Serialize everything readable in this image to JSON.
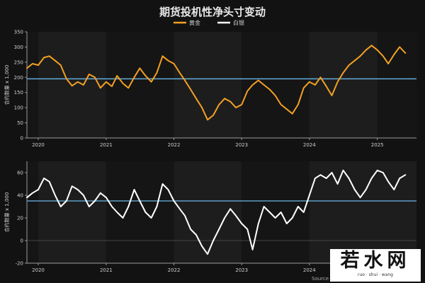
{
  "chart_data": [
    {
      "type": "line",
      "panel": "top",
      "title": "期货投机性净头寸变动",
      "ylabel": "合约数量 x 1,000",
      "ylim": [
        0,
        350
      ],
      "yticks": [
        0,
        50,
        100,
        150,
        200,
        250,
        300,
        350
      ],
      "xlim": [
        "2019-11-01",
        "2025-07-31"
      ],
      "xticks": [
        {
          "date": "2020-01-01",
          "label": "2020"
        },
        {
          "date": "2021-01-01",
          "label": "2021"
        },
        {
          "date": "2022-01-01",
          "label": "2022"
        },
        {
          "date": "2023-01-01",
          "label": "2023"
        },
        {
          "date": "2024-01-01",
          "label": "2024"
        },
        {
          "date": "2025-01-01",
          "label": "2025"
        }
      ],
      "reference_line": 195,
      "grid": false,
      "legend_position": "top-center",
      "series": [
        {
          "name": "黄金",
          "color": "#f2a023",
          "points": [
            [
              "2019-11-01",
              230
            ],
            [
              "2019-12-01",
              245
            ],
            [
              "2020-01-01",
              240
            ],
            [
              "2020-02-01",
              265
            ],
            [
              "2020-03-01",
              270
            ],
            [
              "2020-04-01",
              255
            ],
            [
              "2020-05-01",
              240
            ],
            [
              "2020-06-01",
              195
            ],
            [
              "2020-07-01",
              172
            ],
            [
              "2020-08-01",
              185
            ],
            [
              "2020-09-01",
              175
            ],
            [
              "2020-10-01",
              210
            ],
            [
              "2020-11-01",
              200
            ],
            [
              "2020-12-01",
              165
            ],
            [
              "2021-01-01",
              185
            ],
            [
              "2021-02-01",
              170
            ],
            [
              "2021-03-01",
              205
            ],
            [
              "2021-04-01",
              180
            ],
            [
              "2021-05-01",
              165
            ],
            [
              "2021-06-01",
              200
            ],
            [
              "2021-07-01",
              230
            ],
            [
              "2021-08-01",
              205
            ],
            [
              "2021-09-01",
              185
            ],
            [
              "2021-10-01",
              215
            ],
            [
              "2021-11-01",
              270
            ],
            [
              "2021-12-01",
              255
            ],
            [
              "2022-01-01",
              245
            ],
            [
              "2022-02-01",
              215
            ],
            [
              "2022-03-01",
              190
            ],
            [
              "2022-04-01",
              160
            ],
            [
              "2022-05-01",
              130
            ],
            [
              "2022-06-01",
              100
            ],
            [
              "2022-07-01",
              60
            ],
            [
              "2022-08-01",
              75
            ],
            [
              "2022-09-01",
              110
            ],
            [
              "2022-10-01",
              130
            ],
            [
              "2022-11-01",
              120
            ],
            [
              "2022-12-01",
              100
            ],
            [
              "2023-01-01",
              110
            ],
            [
              "2023-02-01",
              155
            ],
            [
              "2023-03-01",
              175
            ],
            [
              "2023-04-01",
              190
            ],
            [
              "2023-05-01",
              175
            ],
            [
              "2023-06-01",
              160
            ],
            [
              "2023-07-01",
              140
            ],
            [
              "2023-08-01",
              110
            ],
            [
              "2023-09-01",
              95
            ],
            [
              "2023-10-01",
              80
            ],
            [
              "2023-11-01",
              110
            ],
            [
              "2023-12-01",
              165
            ],
            [
              "2024-01-01",
              185
            ],
            [
              "2024-02-01",
              175
            ],
            [
              "2024-03-01",
              200
            ],
            [
              "2024-04-01",
              170
            ],
            [
              "2024-05-01",
              140
            ],
            [
              "2024-06-01",
              185
            ],
            [
              "2024-07-01",
              215
            ],
            [
              "2024-08-01",
              240
            ],
            [
              "2024-09-01",
              255
            ],
            [
              "2024-10-01",
              270
            ],
            [
              "2024-11-01",
              290
            ],
            [
              "2024-12-01",
              305
            ],
            [
              "2025-01-01",
              290
            ],
            [
              "2025-02-01",
              270
            ],
            [
              "2025-03-01",
              245
            ],
            [
              "2025-04-01",
              275
            ],
            [
              "2025-05-01",
              300
            ],
            [
              "2025-06-01",
              280
            ]
          ]
        }
      ]
    },
    {
      "type": "line",
      "panel": "bottom",
      "ylabel": "合约数量 x 1,000",
      "ylim": [
        -20,
        70
      ],
      "yticks": [
        -20,
        0,
        20,
        40,
        60
      ],
      "xlim": [
        "2019-11-01",
        "2025-07-31"
      ],
      "xticks": [
        {
          "date": "2020-01-01",
          "label": "2020"
        },
        {
          "date": "2021-01-01",
          "label": "2021"
        },
        {
          "date": "2022-01-01",
          "label": "2022"
        },
        {
          "date": "2023-01-01",
          "label": "2023"
        },
        {
          "date": "2024-01-01",
          "label": "2024"
        }
      ],
      "reference_line": 35,
      "grid": false,
      "source_label": "Source",
      "series": [
        {
          "name": "白银",
          "color": "#ffffff",
          "points": [
            [
              "2019-11-01",
              38
            ],
            [
              "2019-12-01",
              42
            ],
            [
              "2020-01-01",
              45
            ],
            [
              "2020-02-01",
              55
            ],
            [
              "2020-03-01",
              52
            ],
            [
              "2020-04-01",
              40
            ],
            [
              "2020-05-01",
              30
            ],
            [
              "2020-06-01",
              35
            ],
            [
              "2020-07-01",
              48
            ],
            [
              "2020-08-01",
              45
            ],
            [
              "2020-09-01",
              40
            ],
            [
              "2020-10-01",
              30
            ],
            [
              "2020-11-01",
              35
            ],
            [
              "2020-12-01",
              42
            ],
            [
              "2021-01-01",
              38
            ],
            [
              "2021-02-01",
              30
            ],
            [
              "2021-03-01",
              25
            ],
            [
              "2021-04-01",
              20
            ],
            [
              "2021-05-01",
              30
            ],
            [
              "2021-06-01",
              45
            ],
            [
              "2021-07-01",
              35
            ],
            [
              "2021-08-01",
              25
            ],
            [
              "2021-09-01",
              20
            ],
            [
              "2021-10-01",
              30
            ],
            [
              "2021-11-01",
              50
            ],
            [
              "2021-12-01",
              45
            ],
            [
              "2022-01-01",
              35
            ],
            [
              "2022-02-01",
              28
            ],
            [
              "2022-03-01",
              22
            ],
            [
              "2022-04-01",
              10
            ],
            [
              "2022-05-01",
              5
            ],
            [
              "2022-06-01",
              -5
            ],
            [
              "2022-07-01",
              -12
            ],
            [
              "2022-08-01",
              0
            ],
            [
              "2022-09-01",
              10
            ],
            [
              "2022-10-01",
              20
            ],
            [
              "2022-11-01",
              28
            ],
            [
              "2022-12-01",
              22
            ],
            [
              "2023-01-01",
              15
            ],
            [
              "2023-02-01",
              10
            ],
            [
              "2023-03-01",
              -8
            ],
            [
              "2023-04-01",
              15
            ],
            [
              "2023-05-01",
              30
            ],
            [
              "2023-06-01",
              25
            ],
            [
              "2023-07-01",
              20
            ],
            [
              "2023-08-01",
              25
            ],
            [
              "2023-09-01",
              15
            ],
            [
              "2023-10-01",
              20
            ],
            [
              "2023-11-01",
              30
            ],
            [
              "2023-12-01",
              25
            ],
            [
              "2024-01-01",
              40
            ],
            [
              "2024-02-01",
              55
            ],
            [
              "2024-03-01",
              58
            ],
            [
              "2024-04-01",
              55
            ],
            [
              "2024-05-01",
              60
            ],
            [
              "2024-06-01",
              50
            ],
            [
              "2024-07-01",
              62
            ],
            [
              "2024-08-01",
              55
            ],
            [
              "2024-09-01",
              45
            ],
            [
              "2024-10-01",
              38
            ],
            [
              "2024-11-01",
              45
            ],
            [
              "2024-12-01",
              55
            ],
            [
              "2025-01-01",
              62
            ],
            [
              "2025-02-01",
              60
            ],
            [
              "2025-03-01",
              52
            ],
            [
              "2025-04-01",
              45
            ],
            [
              "2025-05-01",
              55
            ],
            [
              "2025-06-01",
              58
            ]
          ]
        }
      ]
    }
  ],
  "colors": {
    "background": "#121212",
    "band_light": "#1d1d1d",
    "band_dark": "#151515",
    "axis": "#9a9a9a",
    "text": "#cfcfcf",
    "reference": "#6ab7e8"
  },
  "watermark": {
    "text": "若水网",
    "subtext": "ruo · shui · wang"
  }
}
